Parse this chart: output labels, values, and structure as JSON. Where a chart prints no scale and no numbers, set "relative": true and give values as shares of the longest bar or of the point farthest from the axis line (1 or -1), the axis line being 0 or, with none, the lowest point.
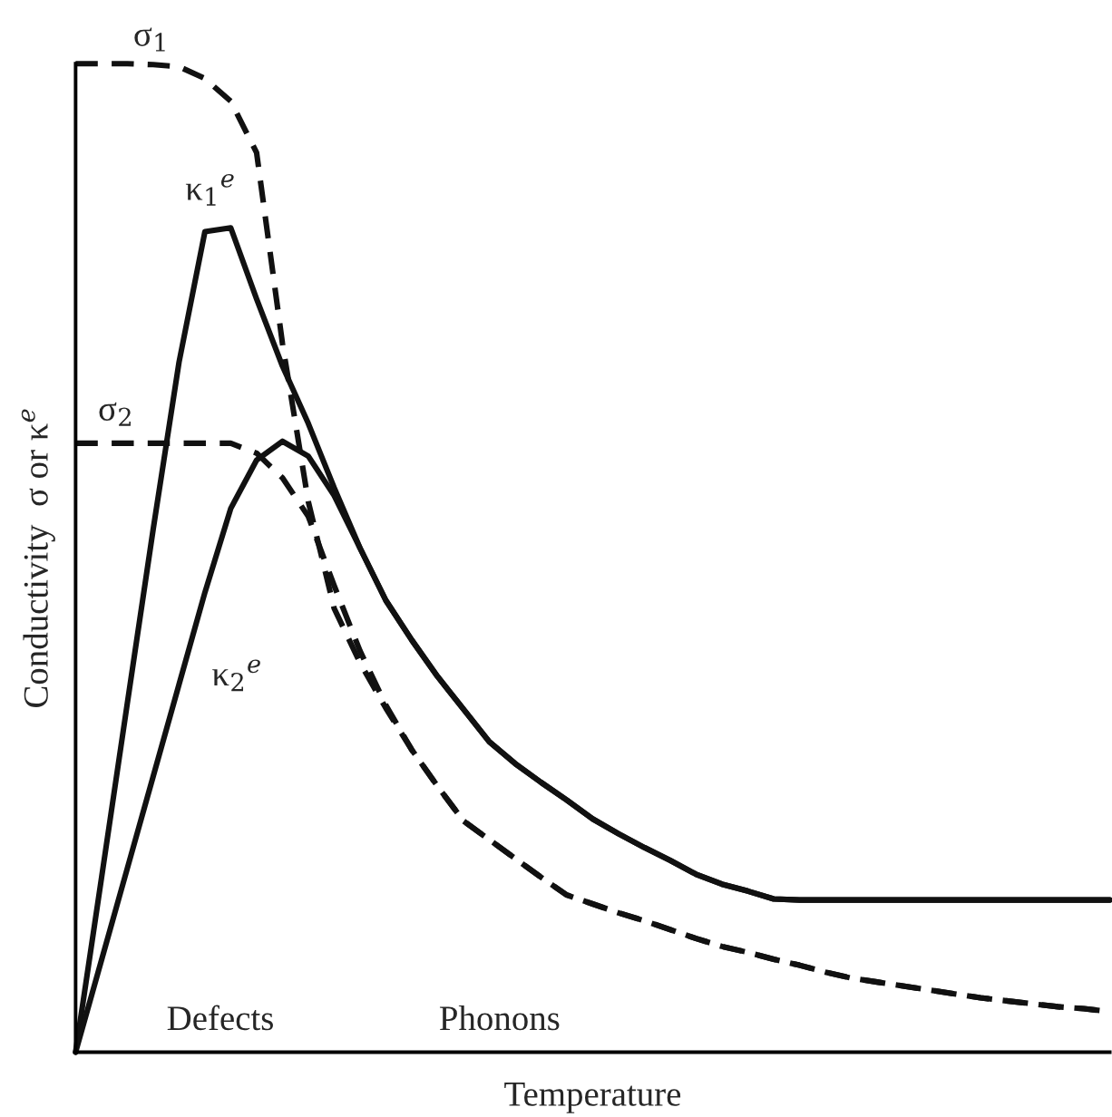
{
  "chart_data": {
    "type": "line",
    "relative": true,
    "xlabel": "Temperature",
    "ylabel": "Conductivity  σ or κ$^{e}$",
    "legend": false,
    "marker": "none",
    "categories": [
      null,
      null,
      null,
      null,
      null,
      null,
      null,
      null,
      null,
      null,
      null,
      null,
      null,
      null,
      null,
      null,
      null,
      null,
      null,
      null,
      null,
      null,
      null,
      null,
      null,
      null,
      null,
      null,
      null,
      null,
      null,
      null,
      null,
      null,
      null,
      null,
      null,
      null,
      null,
      null,
      null
    ],
    "series": [
      {
        "name": "σ$_{1}$",
        "color": "#111111",
        "line_style": "dashed",
        "values": [
          1.0,
          1.0,
          1.0,
          0.999,
          0.997,
          0.985,
          0.962,
          0.91,
          0.717,
          0.557,
          0.449,
          0.394,
          0.348,
          0.306,
          0.269,
          0.234,
          0.215,
          0.196,
          0.177,
          0.159,
          0.15,
          0.141,
          0.133,
          0.124,
          0.115,
          0.107,
          0.101,
          0.094,
          0.088,
          0.081,
          0.075,
          0.071,
          0.067,
          0.063,
          0.059,
          0.055,
          0.052,
          0.049,
          0.046,
          0.044,
          0.041
        ]
      },
      {
        "name": "σ$_{2}$",
        "color": "#111111",
        "line_style": "dashed",
        "values": [
          0.616,
          0.616,
          0.616,
          0.616,
          0.616,
          0.616,
          0.616,
          0.606,
          0.581,
          0.542,
          0.472,
          0.406,
          0.351,
          0.306,
          0.269,
          0.234,
          0.215,
          0.196,
          0.177,
          0.159,
          0.15,
          0.141,
          0.133,
          0.124,
          0.115,
          0.107,
          0.101,
          0.094,
          0.088,
          0.081,
          0.075,
          0.071,
          0.067,
          0.063,
          0.059,
          0.055,
          0.052,
          0.049,
          0.046,
          0.044,
          0.041
        ]
      },
      {
        "name": "κ$_{1}$$^{e}$",
        "color": "#111111",
        "line_style": "solid",
        "values": [
          0,
          0.176,
          0.353,
          0.529,
          0.698,
          0.83,
          0.834,
          0.762,
          0.694,
          0.636,
          0.571,
          0.51,
          0.457,
          0.417,
          0.38,
          0.347,
          0.314,
          0.292,
          0.273,
          0.255,
          0.236,
          0.221,
          0.207,
          0.194,
          0.18,
          0.17,
          0.163,
          0.155,
          0.154,
          0.154,
          0.154,
          0.154,
          0.154,
          0.154,
          0.154,
          0.154,
          0.154,
          0.154,
          0.154,
          0.154,
          0.154
        ]
      },
      {
        "name": "κ$_{2}$$^{e}$",
        "color": "#111111",
        "line_style": "solid",
        "values": [
          0,
          0.093,
          0.186,
          0.279,
          0.372,
          0.465,
          0.55,
          0.599,
          0.618,
          0.603,
          0.563,
          0.51,
          0.457,
          0.417,
          0.38,
          0.347,
          0.314,
          0.292,
          0.273,
          0.255,
          0.236,
          0.221,
          0.207,
          0.194,
          0.18,
          0.17,
          0.163,
          0.155,
          0.154,
          0.154,
          0.154,
          0.154,
          0.154,
          0.154,
          0.154,
          0.154,
          0.154,
          0.154,
          0.154,
          0.154,
          0.154
        ]
      }
    ],
    "annotations": [
      "Defects",
      "Phonons"
    ]
  }
}
